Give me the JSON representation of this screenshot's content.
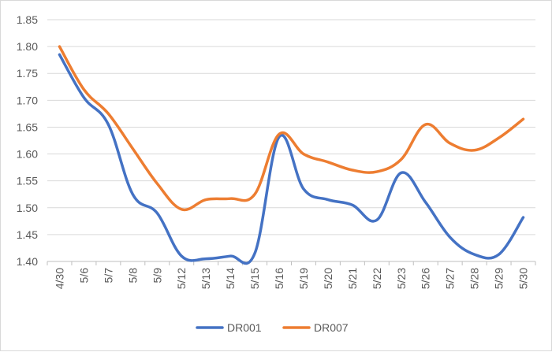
{
  "chart_data": {
    "type": "line",
    "categories": [
      "4/30",
      "5/6",
      "5/7",
      "5/8",
      "5/9",
      "5/12",
      "5/13",
      "5/14",
      "5/15",
      "5/16",
      "5/19",
      "5/20",
      "5/21",
      "5/22",
      "5/23",
      "5/26",
      "5/27",
      "5/28",
      "5/29",
      "5/30"
    ],
    "series": [
      {
        "name": "DR001",
        "color": "#4472C4",
        "values": [
          1.785,
          1.705,
          1.655,
          1.525,
          1.49,
          1.41,
          1.405,
          1.41,
          1.415,
          1.632,
          1.535,
          1.515,
          1.505,
          1.477,
          1.565,
          1.51,
          1.445,
          1.413,
          1.413,
          1.482
        ]
      },
      {
        "name": "DR007",
        "color": "#ED7D31",
        "values": [
          1.8,
          1.72,
          1.675,
          1.61,
          1.545,
          1.497,
          1.515,
          1.517,
          1.525,
          1.637,
          1.6,
          1.585,
          1.57,
          1.567,
          1.59,
          1.655,
          1.62,
          1.607,
          1.63,
          1.665
        ]
      }
    ],
    "y_ticks": [
      "1.40",
      "1.45",
      "1.50",
      "1.55",
      "1.60",
      "1.65",
      "1.70",
      "1.75",
      "1.80",
      "1.85"
    ],
    "ylim": [
      1.4,
      1.85
    ],
    "grid": true,
    "legend_position": "bottom",
    "title": "",
    "xlabel": "",
    "ylabel": ""
  }
}
